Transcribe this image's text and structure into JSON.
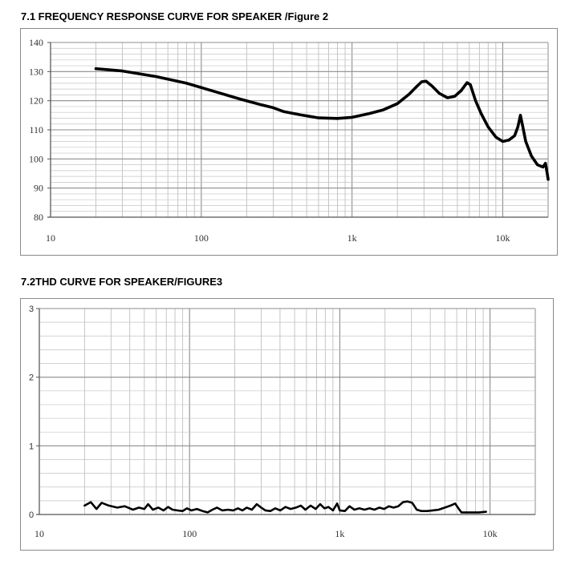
{
  "figures": {
    "fr_title": "7.1 FREQUENCY RESPONSE CURVE FOR SPEAKER /Figure 2",
    "thd_title": "7.2THD CURVE FOR SPEAKER/FIGURE3"
  },
  "chart_data": [
    {
      "id": "fr",
      "type": "line",
      "x_scale": "log",
      "xlim": [
        10,
        20000
      ],
      "ylim": [
        80,
        140
      ],
      "x_ticks": [
        10,
        100,
        1000,
        10000
      ],
      "x_tick_labels": [
        "10",
        "100",
        "1k",
        "10k"
      ],
      "y_ticks": [
        80,
        90,
        100,
        110,
        120,
        130,
        140
      ],
      "y_tick_labels": [
        "80",
        "90",
        "100",
        "110",
        "120",
        "130",
        "140"
      ],
      "grid": true,
      "line_color": "#000000",
      "series": [
        {
          "points": [
            [
              20,
              131
            ],
            [
              30,
              130.2
            ],
            [
              50,
              128.3
            ],
            [
              80,
              126
            ],
            [
              120,
              123.3
            ],
            [
              180,
              120.6
            ],
            [
              250,
              118.6
            ],
            [
              300,
              117.6
            ],
            [
              350,
              116.3
            ],
            [
              450,
              115.2
            ],
            [
              600,
              114.1
            ],
            [
              800,
              113.9
            ],
            [
              1000,
              114.3
            ],
            [
              1300,
              115.6
            ],
            [
              1600,
              116.8
            ],
            [
              2000,
              119
            ],
            [
              2400,
              122.3
            ],
            [
              2700,
              125
            ],
            [
              2900,
              126.5
            ],
            [
              3100,
              126.7
            ],
            [
              3400,
              125
            ],
            [
              3800,
              122.5
            ],
            [
              4300,
              121
            ],
            [
              4800,
              121.5
            ],
            [
              5300,
              123.5
            ],
            [
              5800,
              126.2
            ],
            [
              6100,
              125.5
            ],
            [
              6600,
              120
            ],
            [
              7200,
              115.5
            ],
            [
              8000,
              111
            ],
            [
              9000,
              107.5
            ],
            [
              10000,
              106
            ],
            [
              11000,
              106.5
            ],
            [
              12000,
              108
            ],
            [
              12600,
              111
            ],
            [
              13100,
              115
            ],
            [
              13600,
              111
            ],
            [
              14200,
              106
            ],
            [
              15500,
              101
            ],
            [
              17000,
              98
            ],
            [
              18500,
              97.2
            ],
            [
              19200,
              98.5
            ],
            [
              19800,
              94.5
            ],
            [
              20000,
              93
            ]
          ]
        }
      ]
    },
    {
      "id": "thd",
      "type": "line",
      "x_scale": "log",
      "xlim": [
        10,
        20000
      ],
      "ylim": [
        0,
        3
      ],
      "x_ticks": [
        10,
        100,
        1000,
        10000
      ],
      "x_tick_labels": [
        "10",
        "100",
        "1k",
        "10k"
      ],
      "y_ticks": [
        0,
        1,
        2,
        3
      ],
      "y_tick_labels": [
        "0",
        "1",
        "2",
        "3"
      ],
      "grid": true,
      "line_color": "#000000",
      "series": [
        {
          "points": [
            [
              20,
              0.13
            ],
            [
              22,
              0.18
            ],
            [
              24,
              0.08
            ],
            [
              26,
              0.17
            ],
            [
              29,
              0.13
            ],
            [
              33,
              0.1
            ],
            [
              37,
              0.12
            ],
            [
              42,
              0.07
            ],
            [
              46,
              0.1
            ],
            [
              50,
              0.08
            ],
            [
              53,
              0.15
            ],
            [
              57,
              0.07
            ],
            [
              62,
              0.1
            ],
            [
              67,
              0.06
            ],
            [
              72,
              0.11
            ],
            [
              77,
              0.07
            ],
            [
              83,
              0.06
            ],
            [
              90,
              0.05
            ],
            [
              96,
              0.09
            ],
            [
              103,
              0.06
            ],
            [
              112,
              0.08
            ],
            [
              122,
              0.05
            ],
            [
              132,
              0.03
            ],
            [
              142,
              0.07
            ],
            [
              152,
              0.1
            ],
            [
              165,
              0.06
            ],
            [
              180,
              0.07
            ],
            [
              195,
              0.06
            ],
            [
              210,
              0.09
            ],
            [
              225,
              0.06
            ],
            [
              240,
              0.1
            ],
            [
              260,
              0.07
            ],
            [
              280,
              0.15
            ],
            [
              300,
              0.1
            ],
            [
              320,
              0.06
            ],
            [
              345,
              0.05
            ],
            [
              372,
              0.09
            ],
            [
              402,
              0.06
            ],
            [
              435,
              0.11
            ],
            [
              470,
              0.08
            ],
            [
              510,
              0.1
            ],
            [
              550,
              0.13
            ],
            [
              590,
              0.07
            ],
            [
              640,
              0.13
            ],
            [
              690,
              0.08
            ],
            [
              740,
              0.15
            ],
            [
              790,
              0.09
            ],
            [
              840,
              0.11
            ],
            [
              900,
              0.06
            ],
            [
              960,
              0.16
            ],
            [
              1000,
              0.06
            ],
            [
              1080,
              0.05
            ],
            [
              1160,
              0.12
            ],
            [
              1250,
              0.07
            ],
            [
              1350,
              0.09
            ],
            [
              1460,
              0.07
            ],
            [
              1580,
              0.09
            ],
            [
              1700,
              0.07
            ],
            [
              1830,
              0.1
            ],
            [
              1970,
              0.08
            ],
            [
              2120,
              0.12
            ],
            [
              2280,
              0.1
            ],
            [
              2450,
              0.12
            ],
            [
              2630,
              0.18
            ],
            [
              2820,
              0.19
            ],
            [
              3030,
              0.17
            ],
            [
              3250,
              0.07
            ],
            [
              3500,
              0.05
            ],
            [
              3800,
              0.05
            ],
            [
              4150,
              0.06
            ],
            [
              4550,
              0.07
            ],
            [
              5000,
              0.1
            ],
            [
              5450,
              0.13
            ],
            [
              5850,
              0.16
            ],
            [
              6200,
              0.08
            ],
            [
              6450,
              0.03
            ],
            [
              7200,
              0.03
            ],
            [
              8400,
              0.03
            ],
            [
              9400,
              0.04
            ]
          ]
        }
      ]
    }
  ]
}
